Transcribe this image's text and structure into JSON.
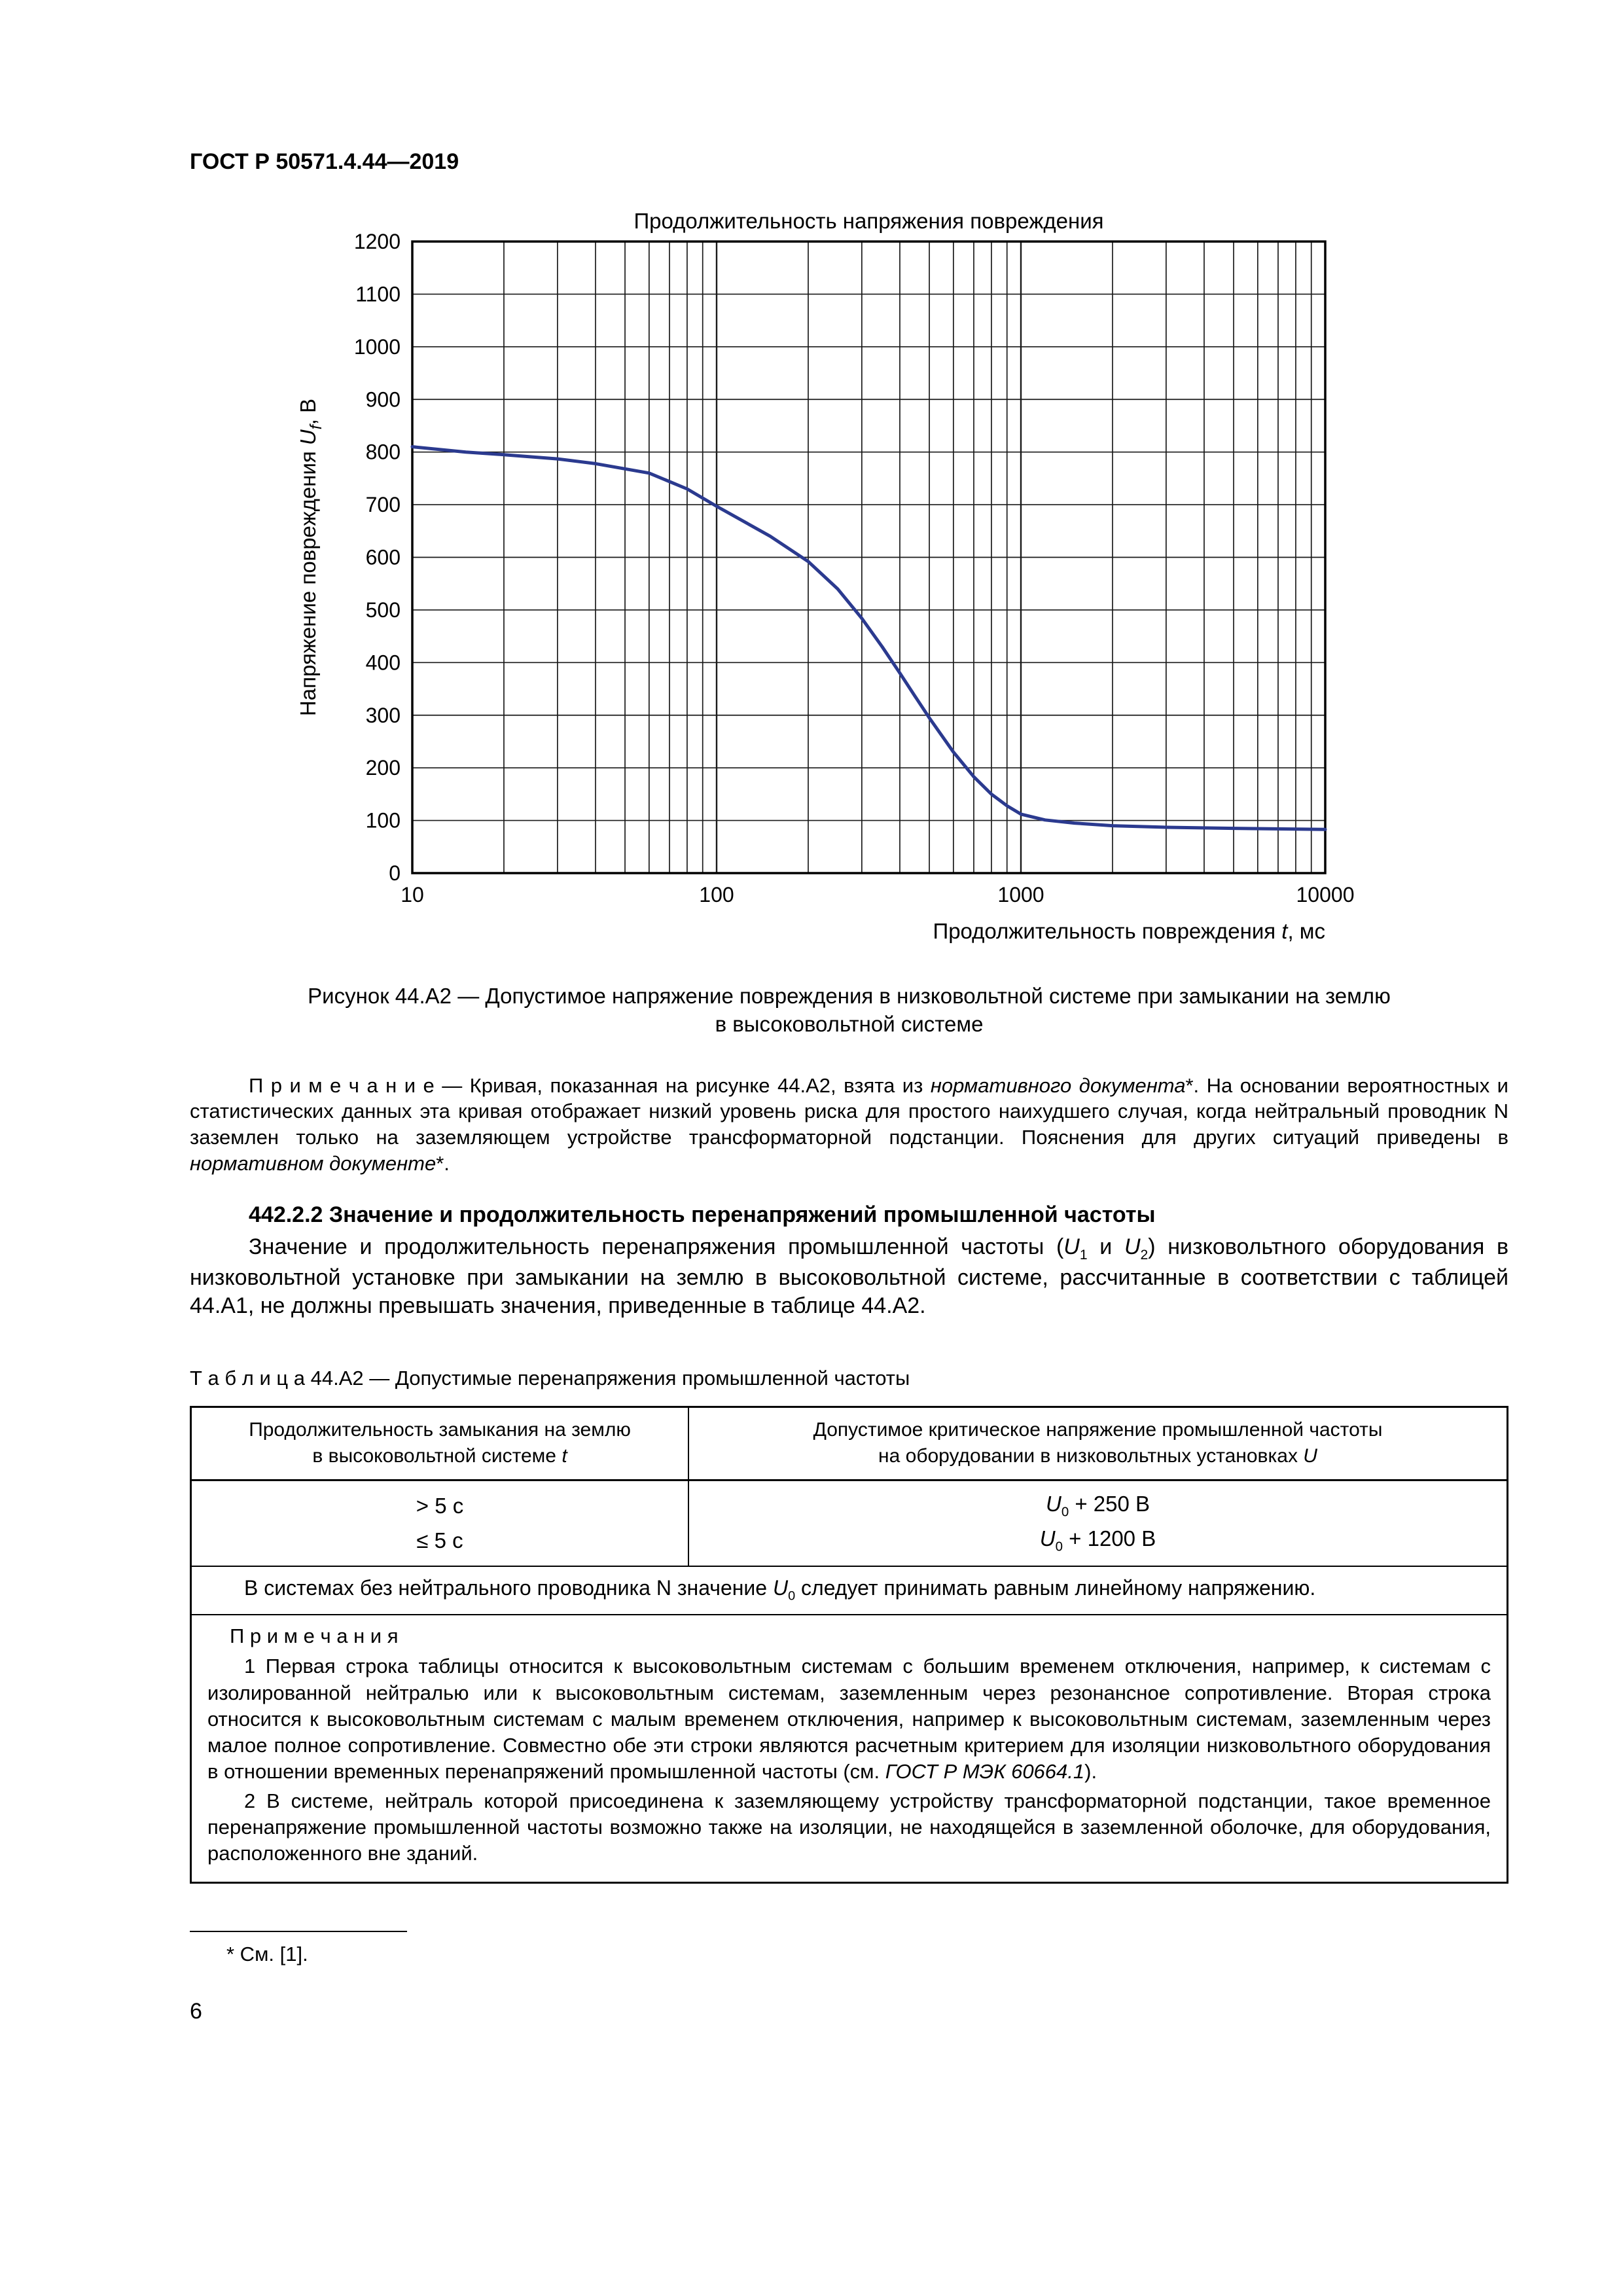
{
  "page": {
    "header": "ГОСТ Р 50571.4.44—2019",
    "number": "6"
  },
  "chart_data": {
    "type": "line",
    "title": "Продолжительность напряжения повреждения",
    "ylabel": "Напряжение повреждения Uf, В",
    "xlabel": "Продолжительность повреждения t, мс",
    "ylabel_runs": [
      {
        "t": "Напряжение повреждения "
      },
      {
        "t": "U",
        "tag": "i"
      },
      {
        "t": "f",
        "tag": "subi"
      },
      {
        "t": ", В"
      }
    ],
    "xlabel_runs": [
      {
        "t": "Продолжительность повреждения "
      },
      {
        "t": "t",
        "tag": "i"
      },
      {
        "t": ", мс"
      }
    ],
    "xscale": "log",
    "xlim": [
      10,
      10000
    ],
    "ylim": [
      0,
      1200
    ],
    "xticks": [
      10,
      100,
      1000,
      10000
    ],
    "yticks": [
      0,
      100,
      200,
      300,
      400,
      500,
      600,
      700,
      800,
      900,
      1000,
      1100,
      1200
    ],
    "x": [
      10,
      15,
      20,
      30,
      40,
      60,
      80,
      100,
      150,
      200,
      250,
      300,
      350,
      400,
      450,
      500,
      600,
      700,
      800,
      900,
      1000,
      1200,
      1500,
      2000,
      3000,
      5000,
      10000
    ],
    "y": [
      810,
      800,
      795,
      787,
      778,
      760,
      730,
      697,
      640,
      592,
      540,
      484,
      430,
      380,
      335,
      295,
      230,
      183,
      150,
      128,
      112,
      101,
      95,
      90,
      87,
      85,
      83
    ],
    "line_color": "#2b3a8f",
    "grid": true,
    "legend_position": "none"
  },
  "figure": {
    "caption": [
      {
        "t": "Рисунок 44.А2 — Допустимое напряжение повреждения в низковольтной системе при замыкании на землю"
      },
      {
        "tag": "br"
      },
      {
        "t": "в высоковольтной системе"
      }
    ]
  },
  "note_after_figure": [
    {
      "t": "П р и м е ч а н и е   — Кривая, показанная на рисунке 44.А2, взята из "
    },
    {
      "t": "нормативного документа",
      "tag": "i"
    },
    {
      "t": "*. На основании вероятностных и статистических данных эта кривая отображает низкий уровень риска для простого наихудшего случая, когда нейтральный проводник N заземлен только на заземляющем устройстве трансформаторной подстанции. Пояснения для других ситуаций приведены в "
    },
    {
      "t": "нормативном документе",
      "tag": "i"
    },
    {
      "t": "*."
    }
  ],
  "section": {
    "heading": "442.2.2 Значение и продолжительность перенапряжений промышленной частоты",
    "body": [
      {
        "t": "Значение и продолжительность перенапряжения промышленной частоты ("
      },
      {
        "t": "U",
        "tag": "i"
      },
      {
        "t": "1",
        "tag": "sub"
      },
      {
        "t": " и "
      },
      {
        "t": "U",
        "tag": "i"
      },
      {
        "t": "2",
        "tag": "sub"
      },
      {
        "t": ") низковольтного оборудования в низковольтной установке при замыкании на землю в высоковольтной системе, рассчитанные в соответствии с таблицей 44.А1, не должны превышать значения, приведенные в таблице 44.А2."
      }
    ]
  },
  "table": {
    "label": "Т а б л и ц а   44.А2 — Допустимые перенапряжения промышленной частоты",
    "header_col1": [
      {
        "t": "Продолжительность замыкания на землю"
      },
      {
        "tag": "br"
      },
      {
        "t": "в высоковольтной системе "
      },
      {
        "t": "t",
        "tag": "i"
      }
    ],
    "header_col2": [
      {
        "t": "Допустимое критическое напряжение промышленной частоты"
      },
      {
        "tag": "br"
      },
      {
        "t": "на оборудовании в низковольтных установках "
      },
      {
        "t": "U",
        "tag": "i"
      }
    ],
    "rows": [
      {
        "duration": "> 5 с",
        "voltage": [
          {
            "t": "U",
            "tag": "i"
          },
          {
            "t": "0",
            "tag": "sub"
          },
          {
            "t": " + 250 В"
          }
        ]
      },
      {
        "duration": "≤ 5 с",
        "voltage": [
          {
            "t": "U",
            "tag": "i"
          },
          {
            "t": "0",
            "tag": "sub"
          },
          {
            "t": " + 1200 В"
          }
        ]
      }
    ],
    "span_note": [
      {
        "t": "В системах без нейтрального проводника N значение "
      },
      {
        "t": "U",
        "tag": "i"
      },
      {
        "t": "0",
        "tag": "sub"
      },
      {
        "t": " следует принимать равным линейному напряжению."
      }
    ],
    "notes_title": "П р и м е ч а н и я",
    "notes": [
      [
        {
          "t": "1 Первая строка таблицы относится к высоковольтным системам с большим временем отключения, например, к системам с изолированной нейтралью или к высоковольтным системам, заземленным через резонансное сопротивление. Вторая строка относится к высоковольтным системам с малым временем отключения, например к высоковольтным системам, заземленным через малое полное сопротивление. Совместно обе эти строки являются расчетным критерием для изоляции низковольтного оборудования в отношении временных перенапряжений промышленной частоты (см. "
        },
        {
          "t": "ГОСТ Р МЭК 60664.1",
          "tag": "i"
        },
        {
          "t": ")."
        }
      ],
      [
        {
          "t": "2 В системе, нейтраль которой присоединена к заземляющему устройству трансформаторной подстанции, такое временное перенапряжение промышленной частоты возможно также на изоляции, не находящейся в заземленной оболочке, для оборудования, расположенного вне зданий."
        }
      ]
    ]
  },
  "footnote": {
    "text": "* См. [1]."
  }
}
